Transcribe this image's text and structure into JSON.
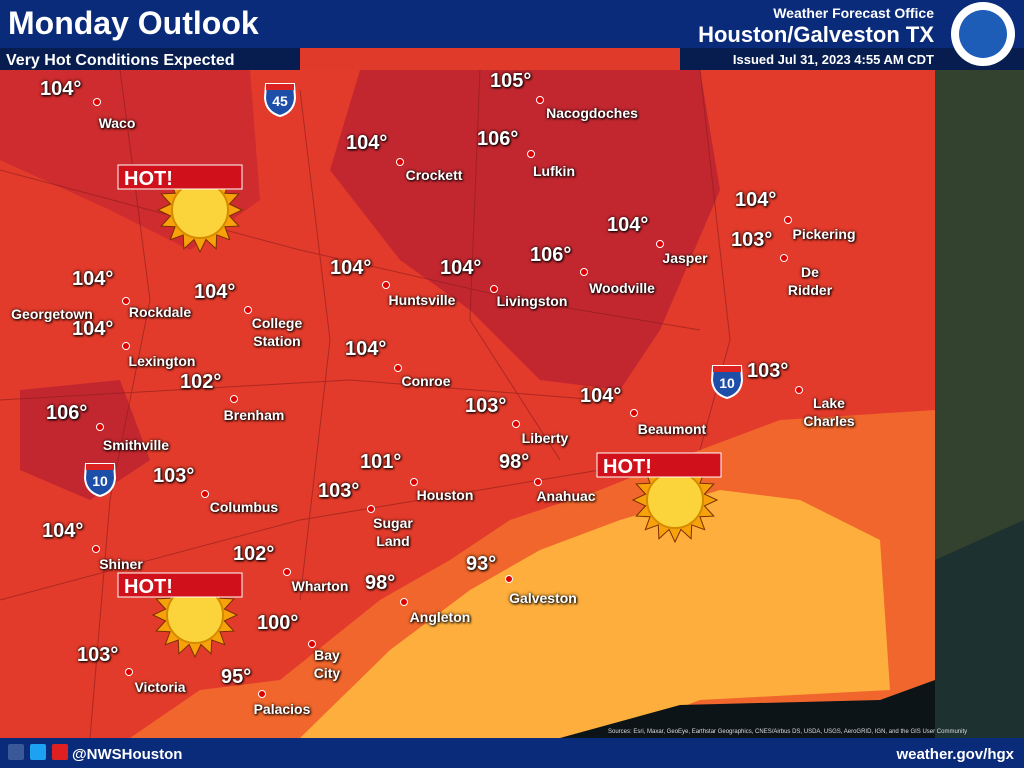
{
  "header": {
    "title": "Monday Outlook",
    "subtitle": "Very Hot Conditions Expected",
    "office": "Weather Forecast Office",
    "location": "Houston/Galveston TX",
    "issued": "Issued Jul 31, 2023 4:55 AM CDT"
  },
  "cities": [
    {
      "name": "Waco",
      "temp": "104°"
    },
    {
      "name": "Nacogdoches",
      "temp": "105°"
    },
    {
      "name": "Crockett",
      "temp": "104°"
    },
    {
      "name": "Lufkin",
      "temp": "106°"
    },
    {
      "name": "Georgetown"
    },
    {
      "name": "Rockdale",
      "temp": "104°"
    },
    {
      "name": "College Station",
      "temp": "104°"
    },
    {
      "name": "Lexington",
      "temp": "104°"
    },
    {
      "name": "Brenham",
      "temp": "102°"
    },
    {
      "name": "Smithville",
      "temp": "106°"
    },
    {
      "name": "Columbus",
      "temp": "103°"
    },
    {
      "name": "Shiner",
      "temp": "104°"
    },
    {
      "name": "Victoria",
      "temp": "103°"
    },
    {
      "name": "Wharton",
      "temp": "102°"
    },
    {
      "name": "Bay City",
      "temp": "100°"
    },
    {
      "name": "Palacios",
      "temp": "95°"
    },
    {
      "name": "Huntsville",
      "temp": "104°"
    },
    {
      "name": "Livingston",
      "temp": "104°"
    },
    {
      "name": "Woodville",
      "temp": "106°"
    },
    {
      "name": "Jasper",
      "temp": "104°"
    },
    {
      "name": "Pickering",
      "temp": "104°"
    },
    {
      "name": "De Ridder",
      "temp": "103°"
    },
    {
      "name": "Conroe",
      "temp": "104°"
    },
    {
      "name": "Liberty",
      "temp": "103°"
    },
    {
      "name": "Beaumont",
      "temp": "104°"
    },
    {
      "name": "Lake Charles",
      "temp": "103°"
    },
    {
      "name": "Houston",
      "temp": "101°"
    },
    {
      "name": "Anahuac",
      "temp": "98°"
    },
    {
      "name": "Sugar Land",
      "temp": "103°"
    },
    {
      "name": "Angleton",
      "temp": "98°"
    },
    {
      "name": "Galveston",
      "temp": "93°"
    }
  ],
  "callouts": [
    "HOT!",
    "HOT!",
    "HOT!"
  ],
  "interstates": [
    "45",
    "10",
    "10"
  ],
  "credits": "Sources: Esri, Maxar, GeoEye, Earthstar Geographics, CNES/Airbus DS, USDA, USGS, AeroGRID, IGN, and the GIS User Community",
  "footer": {
    "handle": "@NWSHouston",
    "url": "weather.gov/hgx"
  }
}
